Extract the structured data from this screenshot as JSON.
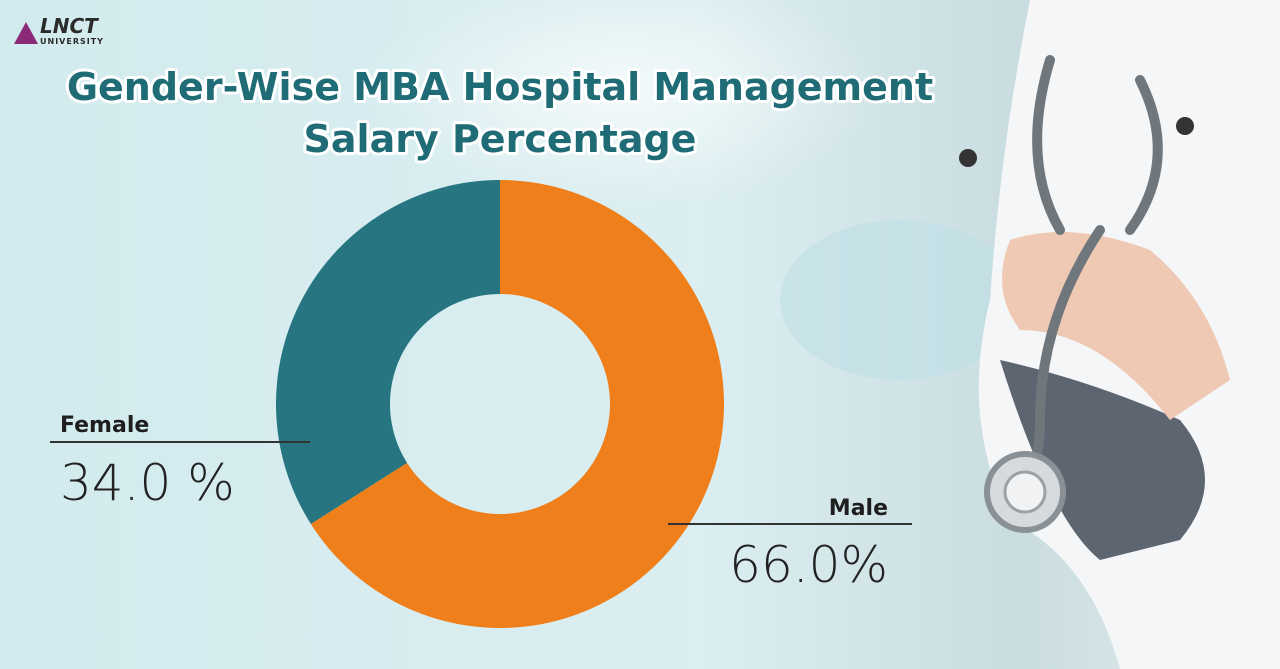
{
  "logo": {
    "name": "LNCT",
    "sub": "UNIVERSITY"
  },
  "chart_data": {
    "type": "pie",
    "donut": true,
    "title": [
      "Gender-Wise MBA Hospital Management",
      "Salary Percentage"
    ],
    "categories": [
      "Female",
      "Male"
    ],
    "values": [
      34,
      66
    ],
    "value_labels": [
      "34.0 %",
      "66.0%"
    ],
    "colors": [
      "#267580",
      "#ef7f1a"
    ]
  }
}
